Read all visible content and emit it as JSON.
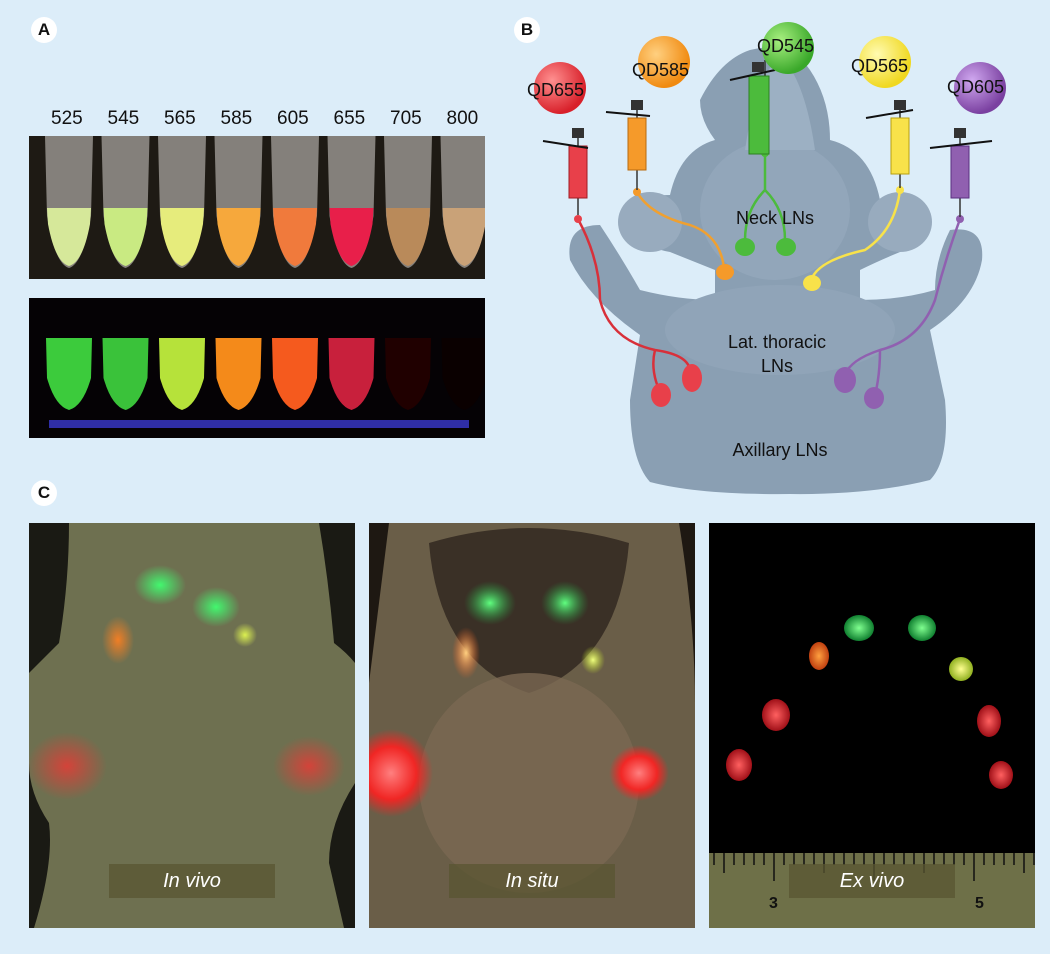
{
  "panels": {
    "a": {
      "letter": "A",
      "tube_labels": [
        "525",
        "545",
        "565",
        "585",
        "605",
        "655",
        "705",
        "800"
      ],
      "colors_room": [
        "#d6e89a",
        "#c9ea82",
        "#e6ec7c",
        "#f6a83c",
        "#f07a3c",
        "#e81f4a",
        "#b98a5a",
        "#c9a278"
      ],
      "colors_uv": [
        "#3ccb3c",
        "#3ac23a",
        "#b6e23a",
        "#f48a1a",
        "#f55a1e",
        "#c8203c",
        "#200000",
        "#0a0000"
      ]
    },
    "b": {
      "letter": "B",
      "qd_labels": [
        "QD655",
        "QD585",
        "QD545",
        "QD565",
        "QD605"
      ],
      "qd_colors": [
        "#e8404a",
        "#f59a2a",
        "#4cbb3c",
        "#f8e24a",
        "#9060b0"
      ],
      "ln_labels": {
        "neck": "Neck LNs",
        "thoracic": "Lat. thoracic LNs",
        "axillary": "Axillary LNs"
      }
    },
    "c": {
      "letter": "C",
      "captions": [
        "In vivo",
        "In situ",
        "Ex vivo"
      ],
      "ruler_numbers": [
        "3",
        "5"
      ]
    }
  }
}
